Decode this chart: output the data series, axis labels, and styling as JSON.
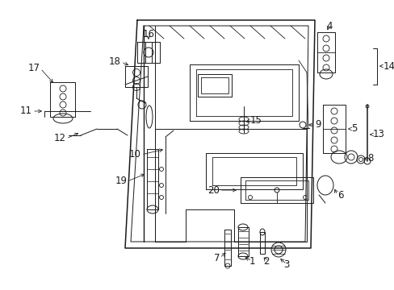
{
  "bg_color": "#ffffff",
  "line_color": "#1a1a1a",
  "figsize": [
    4.89,
    3.6
  ],
  "dpi": 100,
  "font_size": 8.5,
  "line_width": 0.7
}
